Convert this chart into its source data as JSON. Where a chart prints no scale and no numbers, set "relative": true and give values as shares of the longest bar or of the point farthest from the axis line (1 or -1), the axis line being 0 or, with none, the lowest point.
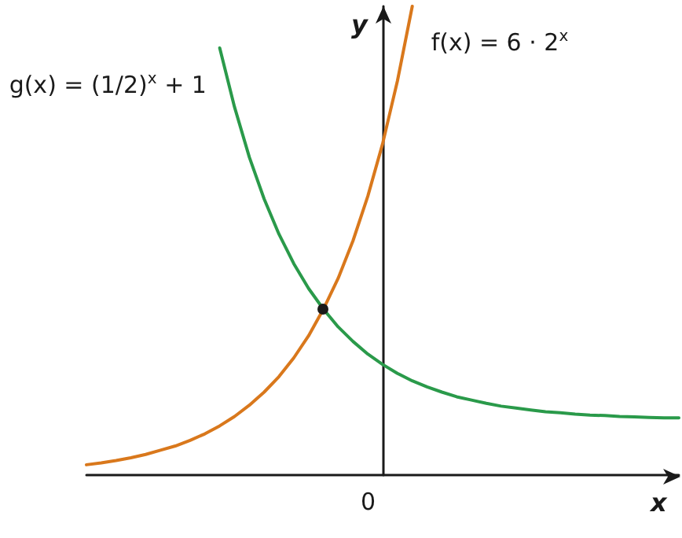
{
  "chart_data": {
    "type": "line",
    "relative": true,
    "xlabel": "x",
    "ylabel": "y",
    "categories": [
      null,
      null,
      null,
      null,
      null,
      null,
      null,
      null,
      null,
      null,
      null,
      null,
      null,
      null,
      null,
      null,
      null,
      null,
      null,
      null,
      null,
      null,
      null,
      null,
      null,
      null,
      null,
      null,
      null,
      null,
      null,
      null,
      null,
      null,
      null,
      null,
      null,
      null,
      null,
      null,
      null
    ],
    "annotations": [
      "0"
    ],
    "series": [
      {
        "name": "f(x) = 6 · 2$^{x}$",
        "color": "#d9781c",
        "values": [
          0.022,
          0.026,
          0.031,
          0.037,
          0.044,
          0.053,
          0.062,
          0.074,
          0.088,
          0.105,
          0.125,
          0.149,
          0.177,
          0.21,
          0.25,
          0.297,
          0.354,
          0.42,
          0.5,
          0.595,
          0.707,
          0.841,
          1,
          null,
          null,
          null,
          null,
          null,
          null,
          null,
          null,
          null,
          null,
          null,
          null,
          null,
          null,
          null,
          null,
          null,
          null
        ]
      },
      {
        "name": "g(x) = (1/2)$^{x}$ + 1",
        "color": "#2a9a4a",
        "values": [
          null,
          null,
          null,
          null,
          null,
          null,
          null,
          null,
          null,
          0.911,
          0.785,
          0.678,
          0.589,
          0.514,
          0.451,
          0.398,
          0.354,
          0.316,
          0.285,
          0.258,
          0.236,
          0.217,
          0.201,
          0.188,
          0.177,
          0.167,
          0.16,
          0.153,
          0.147,
          0.143,
          0.139,
          0.135,
          0.133,
          0.13,
          0.128,
          0.127,
          0.125,
          0.124,
          0.123,
          0.122,
          0.122
        ]
      }
    ],
    "grid": false,
    "legend": false,
    "line_style": "solid"
  }
}
